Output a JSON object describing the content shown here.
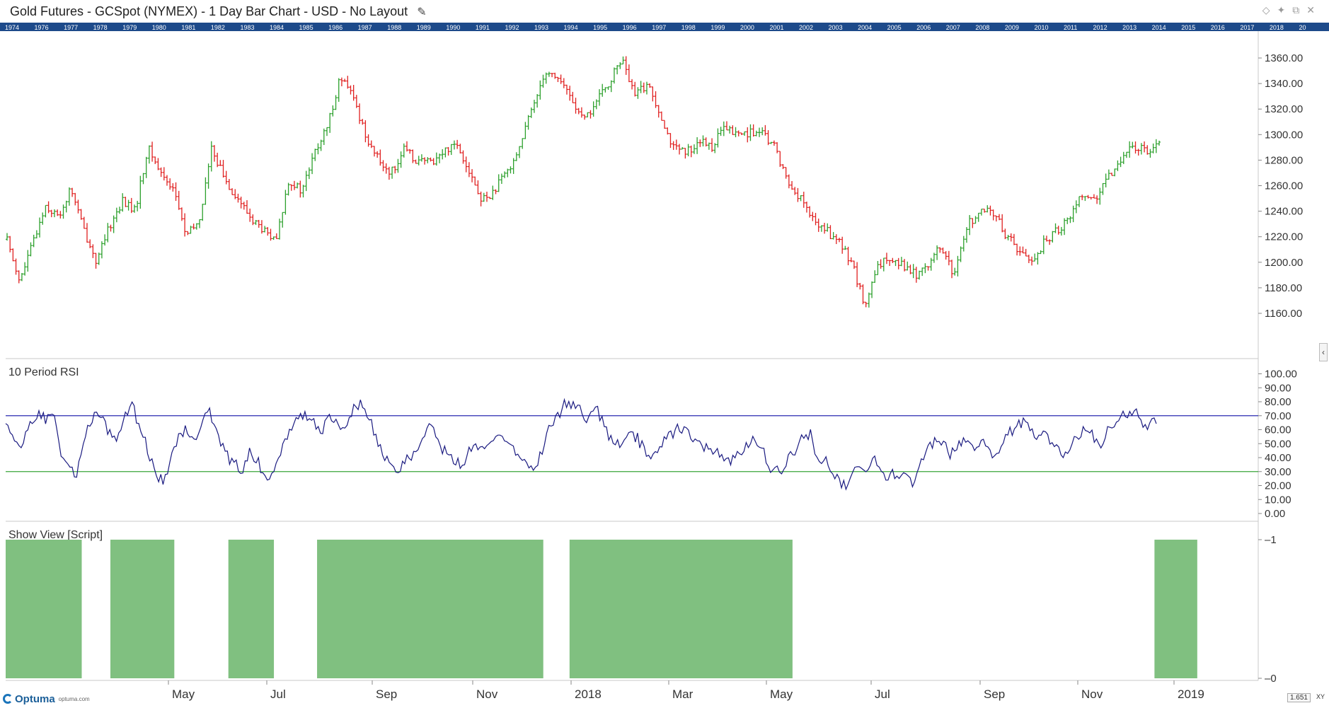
{
  "window": {
    "title": "Gold Futures - GCSpot (NYMEX) - 1 Day Bar Chart - USD - No Layout",
    "edit_icon": "pencil-icon"
  },
  "colors": {
    "up_bar": "#2ca02c",
    "down_bar": "#e02020",
    "rsi_line": "#1a1a80",
    "upper_level": "#2a2ab0",
    "lower_level": "#3aa53a",
    "show_view_fill": "#80c080",
    "timeline_bg": "#1d4a8a"
  },
  "timeline_years": [
    "1974",
    "1976",
    "1977",
    "1978",
    "1979",
    "1980",
    "1981",
    "1982",
    "1983",
    "1984",
    "1985",
    "1986",
    "1987",
    "1988",
    "1989",
    "1990",
    "1991",
    "1992",
    "1993",
    "1994",
    "1995",
    "1996",
    "1997",
    "1998",
    "1999",
    "2000",
    "2001",
    "2002",
    "2003",
    "2004",
    "2005",
    "2006",
    "2007",
    "2008",
    "2009",
    "2010",
    "2011",
    "2012",
    "2013",
    "2014",
    "2015",
    "2016",
    "2017",
    "2018",
    "20"
  ],
  "panels": {
    "rsi_title": "10 Period RSI",
    "script_title": "Show View [Script]"
  },
  "footer": {
    "logo": "Optuma",
    "logo_sub": "optuma.com",
    "readout": "1.651",
    "xy": "XY"
  },
  "chart_data": [
    {
      "type": "ohlc",
      "title": "Gold Futures - GCSpot (NYMEX) - 1 Day Bar Chart - USD - No Layout",
      "ylim": [
        1155,
        1372
      ],
      "yticks": [
        "1160.00",
        "1180.00",
        "1200.00",
        "1220.00",
        "1240.00",
        "1260.00",
        "1280.00",
        "1300.00",
        "1320.00",
        "1340.00",
        "1360.00"
      ],
      "x_labels": [
        "May",
        "Jul",
        "Sep",
        "Nov",
        "2018",
        "Mar",
        "May",
        "Jul",
        "Sep",
        "Nov",
        "2019"
      ],
      "close_path": [
        1218,
        1185,
        1215,
        1245,
        1235,
        1258,
        1225,
        1200,
        1228,
        1248,
        1240,
        1290,
        1270,
        1258,
        1220,
        1232,
        1290,
        1265,
        1250,
        1235,
        1225,
        1215,
        1265,
        1255,
        1285,
        1305,
        1345,
        1330,
        1300,
        1280,
        1270,
        1288,
        1280,
        1278,
        1285,
        1295,
        1275,
        1248,
        1255,
        1270,
        1290,
        1320,
        1350,
        1345,
        1330,
        1310,
        1325,
        1340,
        1360,
        1330,
        1340,
        1318,
        1290,
        1285,
        1295,
        1290,
        1305,
        1300,
        1302,
        1300,
        1290,
        1262,
        1250,
        1232,
        1225,
        1215,
        1200,
        1165,
        1195,
        1205,
        1198,
        1190,
        1200,
        1212,
        1188,
        1230,
        1238,
        1240,
        1222,
        1210,
        1200,
        1215,
        1225,
        1235,
        1255,
        1248,
        1265,
        1282,
        1290,
        1288,
        1294
      ]
    },
    {
      "type": "line",
      "title": "10 Period RSI",
      "ylim": [
        0,
        100
      ],
      "yticks": [
        "0.00",
        "10.00",
        "20.00",
        "30.00",
        "40.00",
        "50.00",
        "60.00",
        "70.00",
        "80.00",
        "90.00",
        "100.00"
      ],
      "levels": [
        70,
        30
      ],
      "series": [
        {
          "values": [
            68,
            55,
            45,
            62,
            70,
            68,
            72,
            40,
            30,
            28,
            55,
            68,
            71,
            60,
            55,
            68,
            78,
            62,
            46,
            30,
            22,
            42,
            55,
            60,
            48,
            68,
            72,
            56,
            42,
            35,
            32,
            45,
            38,
            25,
            30,
            45,
            58,
            68,
            72,
            68,
            55,
            70,
            66,
            60,
            74,
            80,
            72,
            55,
            42,
            35,
            33,
            40,
            45,
            55,
            62,
            48,
            42,
            38,
            36,
            45,
            50,
            48,
            52,
            56,
            48,
            42,
            35,
            30,
            45,
            60,
            70,
            78,
            80,
            72,
            68,
            76,
            62,
            52,
            48,
            60,
            55,
            46,
            42,
            50,
            55,
            60,
            62,
            55,
            50,
            46,
            44,
            40,
            38,
            42,
            50,
            55,
            48,
            33,
            30,
            35,
            45,
            52,
            58,
            40,
            38,
            30,
            20,
            22,
            36,
            28,
            40,
            35,
            24,
            30,
            28,
            22,
            35,
            45,
            52,
            48,
            42,
            50,
            55,
            48,
            52,
            40,
            45,
            55,
            62,
            66,
            60,
            55,
            58,
            50,
            42,
            48,
            56,
            62,
            55,
            50,
            60,
            65,
            70,
            75,
            68,
            62,
            66
          ]
        }
      ]
    },
    {
      "type": "bar",
      "title": "Show View [Script]",
      "ylim": [
        0,
        1
      ],
      "yticks": [
        "0",
        "1"
      ],
      "x_range": [
        0,
        1
      ],
      "segments": [
        [
          0.0,
          0.0608
        ],
        [
          0.0837,
          0.1348
        ],
        [
          0.178,
          0.2144
        ],
        [
          0.2489,
          0.4297
        ],
        [
          0.4507,
          0.6289
        ],
        [
          0.9182,
          0.9524
        ]
      ]
    }
  ]
}
